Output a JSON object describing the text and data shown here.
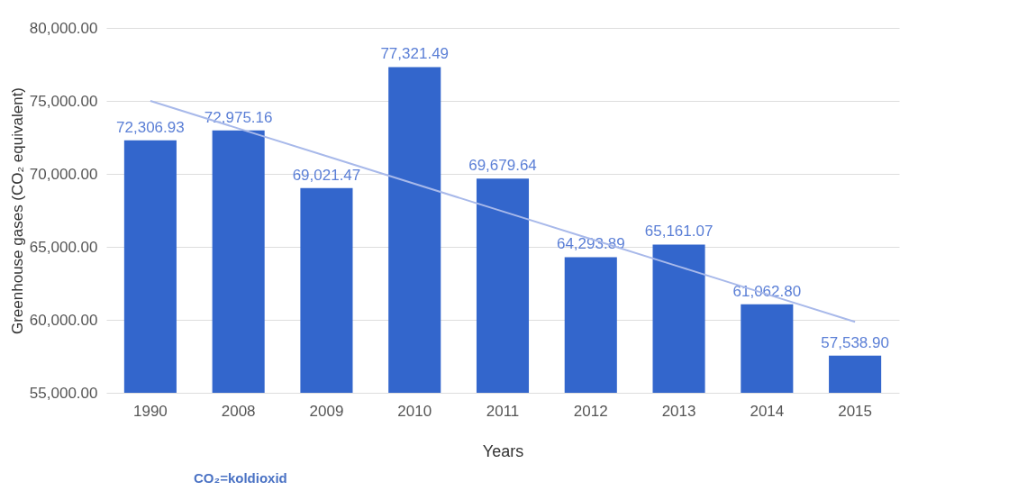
{
  "chart_data": {
    "type": "bar",
    "xlabel": "Years",
    "ylabel": "Greenhouse gases (CO₂ equivalent)",
    "categories": [
      "1990",
      "2008",
      "2009",
      "2010",
      "2011",
      "2012",
      "2013",
      "2014",
      "2015"
    ],
    "series": [
      {
        "color": "#3366cc",
        "values": [
          72306.93,
          72975.16,
          69021.47,
          77321.49,
          69679.64,
          64293.89,
          65161.07,
          61062.8,
          57538.9
        ],
        "value_labels": [
          "72,306.93",
          "72,975.16",
          "69,021.47",
          "77,321.49",
          "69,679.64",
          "64,293.89",
          "65,161.07",
          "61,062.80",
          "57,538.90"
        ]
      },
      {
        "type": "line",
        "values": [
          75000,
          73110,
          71220,
          69320,
          67430,
          65540,
          63650,
          61750,
          59860
        ],
        "color": "#a8b9ea"
      }
    ],
    "ylim": [
      55000,
      80000
    ],
    "yticks": [
      {
        "value": 55000,
        "label": "55,000.00"
      },
      {
        "value": 60000,
        "label": "60,000.00"
      },
      {
        "value": 65000,
        "label": "65,000.00"
      },
      {
        "value": 70000,
        "label": "70,000.00"
      },
      {
        "value": 75000,
        "label": "75,000.00"
      },
      {
        "value": 80000,
        "label": "80,000.00"
      }
    ],
    "grid": "y",
    "annotations": [
      "CO₂=koldioxid"
    ]
  }
}
